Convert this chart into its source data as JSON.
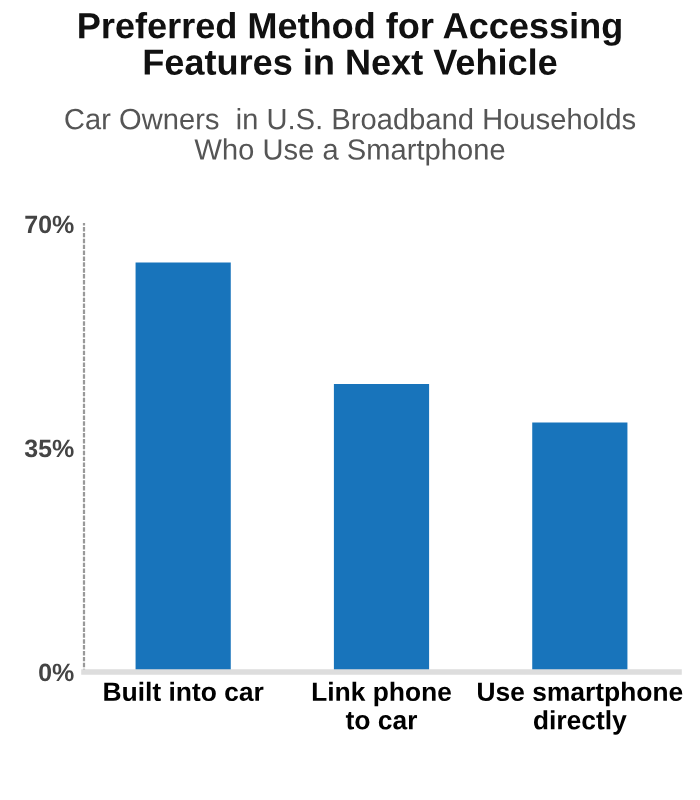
{
  "chart_data": {
    "type": "bar",
    "title": "Preferred Method for Accessing\nFeatures in Next Vehicle",
    "subtitle": "Car Owners  in U.S. Broadband Households\nWho Use a Smartphone",
    "categories": [
      "Built into car",
      "Link phone\nto car",
      "Use smartphone\ndirectly"
    ],
    "values": [
      64,
      45,
      39
    ],
    "color": "#1874bb",
    "ylim": [
      0,
      70
    ],
    "yticks": [
      {
        "value": 0,
        "label": "0%"
      },
      {
        "value": 35,
        "label": "35%"
      },
      {
        "value": 70,
        "label": "70%"
      }
    ],
    "grid": false
  }
}
